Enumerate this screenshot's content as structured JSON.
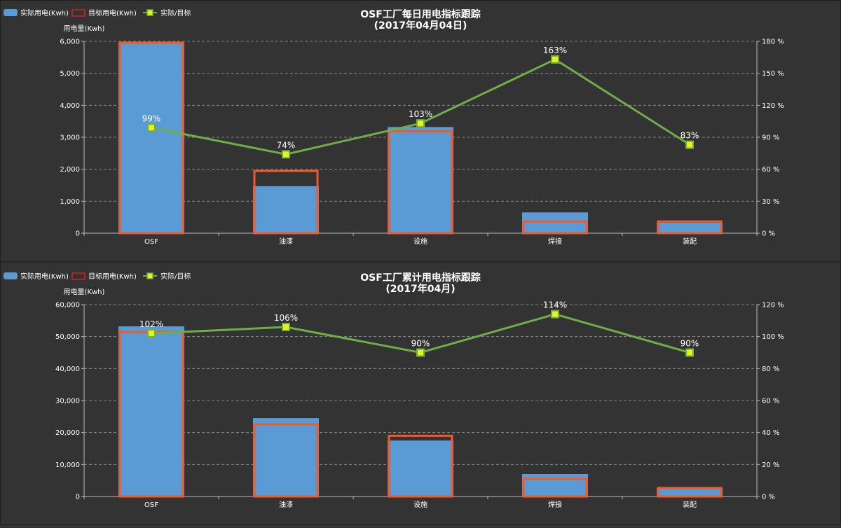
{
  "chart_data": [
    {
      "type": "bar",
      "title": "OSF工厂每日用电指标跟踪",
      "subtitle": "(2017年04月04日)",
      "ylabel": "用电量(Kwh)",
      "categories": [
        "OSF",
        "油漆",
        "设施",
        "焊接",
        "装配"
      ],
      "ylim": [
        0,
        6000
      ],
      "yticks": [
        0,
        1000,
        2000,
        3000,
        4000,
        5000,
        6000
      ],
      "ytick_labels": [
        "0",
        "1,000",
        "2,000",
        "3,000",
        "4,000",
        "5,000",
        "6,000"
      ],
      "y2lim": [
        0,
        180
      ],
      "y2ticks": [
        0,
        30,
        60,
        90,
        120,
        150,
        180
      ],
      "y2tick_labels": [
        "0 %",
        "30 %",
        "60 %",
        "90 %",
        "120 %",
        "150 %",
        "180 %"
      ],
      "grid": true,
      "legend_position": "top-left",
      "series": [
        {
          "name": "实际用电(Kwh)",
          "kind": "bar",
          "color": "#5b9bd5",
          "values": [
            5950,
            1470,
            3320,
            650,
            330
          ]
        },
        {
          "name": "目标用电(Kwh)",
          "kind": "bar-outline",
          "color": "#f05a28",
          "values": [
            5990,
            1980,
            3220,
            400,
            400
          ]
        },
        {
          "name": "实际/目标",
          "kind": "line",
          "axis": "right",
          "color": "#70ad47",
          "marker_color": "#e5f21c",
          "values": [
            99,
            74,
            103,
            163,
            83
          ],
          "labels": [
            "99%",
            "74%",
            "103%",
            "163%",
            "83%"
          ]
        }
      ]
    },
    {
      "type": "bar",
      "title": "OSF工厂累计用电指标跟踪",
      "subtitle": "(2017年04月)",
      "ylabel": "用电量(Kwh)",
      "categories": [
        "OSF",
        "油漆",
        "设施",
        "焊接",
        "装配"
      ],
      "ylim": [
        0,
        60000
      ],
      "yticks": [
        0,
        10000,
        20000,
        30000,
        40000,
        50000,
        60000
      ],
      "ytick_labels": [
        "0",
        "10,000",
        "20,000",
        "30,000",
        "40,000",
        "50,000",
        "60,000"
      ],
      "y2lim": [
        0,
        120
      ],
      "y2ticks": [
        0,
        20,
        40,
        60,
        80,
        100,
        120
      ],
      "y2tick_labels": [
        "0 %",
        "20 %",
        "40 %",
        "60 %",
        "80 %",
        "100 %",
        "120 %"
      ],
      "grid": true,
      "legend_position": "top-left",
      "series": [
        {
          "name": "实际用电(Kwh)",
          "kind": "bar",
          "color": "#5b9bd5",
          "values": [
            53200,
            24500,
            17500,
            7000,
            2700
          ]
        },
        {
          "name": "目标用电(Kwh)",
          "kind": "bar-outline",
          "color": "#f05a28",
          "values": [
            51800,
            22900,
            19300,
            5900,
            3000
          ]
        },
        {
          "name": "实际/目标",
          "kind": "line",
          "axis": "right",
          "color": "#70ad47",
          "marker_color": "#e5f21c",
          "values": [
            102,
            106,
            90,
            114,
            90
          ],
          "labels": [
            "102%",
            "106%",
            "90%",
            "114%",
            "90%"
          ]
        }
      ]
    }
  ]
}
